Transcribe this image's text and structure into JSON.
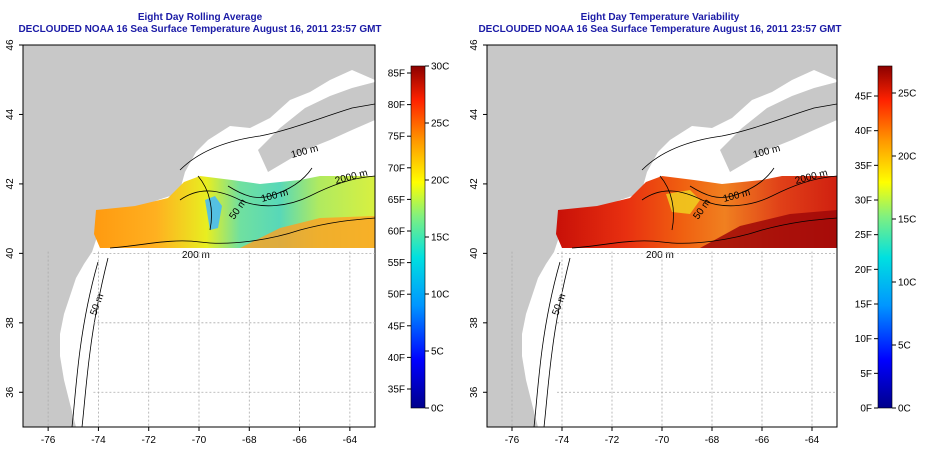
{
  "panels": [
    {
      "title": "Eight Day Rolling Average",
      "subtitle": "DECLOUDED NOAA 16 Sea Surface Temperature August 16, 2011 23:57 GMT",
      "palette": "sst"
    },
    {
      "title": "Eight Day Temperature Variability",
      "subtitle": "DECLOUDED NOAA 16 Sea Surface Temperature August 16, 2011 23:57 GMT",
      "palette": "variability"
    }
  ],
  "map": {
    "lon_ticks": [
      "-76",
      "-74",
      "-72",
      "-70",
      "-68",
      "-66",
      "-64"
    ],
    "lat_ticks": [
      "36",
      "38",
      "40",
      "42",
      "44",
      "46"
    ],
    "lon_range": [
      -77.0,
      -63.0
    ],
    "lat_range": [
      35.0,
      46.0
    ],
    "contour_labels": [
      "100 m",
      "2000 m",
      "200 m",
      "50 m",
      "100 m",
      "200 m",
      "50 m"
    ],
    "colors": {
      "land": "#c8c8c8",
      "ocean": "#ffffff",
      "title": "#1a1aa6"
    }
  },
  "colorbars": [
    {
      "f_labels": [
        "85F",
        "80F",
        "75F",
        "70F",
        "65F",
        "60F",
        "55F",
        "50F",
        "45F",
        "40F",
        "35F"
      ],
      "c_labels": [
        "30C",
        "25C",
        "20C",
        "15C",
        "10C",
        "5C",
        "0C"
      ]
    },
    {
      "f_labels": [
        "45F",
        "40F",
        "35F",
        "30F",
        "25F",
        "20F",
        "15F",
        "10F",
        "5F",
        "0F"
      ],
      "c_labels": [
        "25C",
        "20C",
        "15C",
        "10C",
        "5C",
        "0C"
      ]
    }
  ]
}
